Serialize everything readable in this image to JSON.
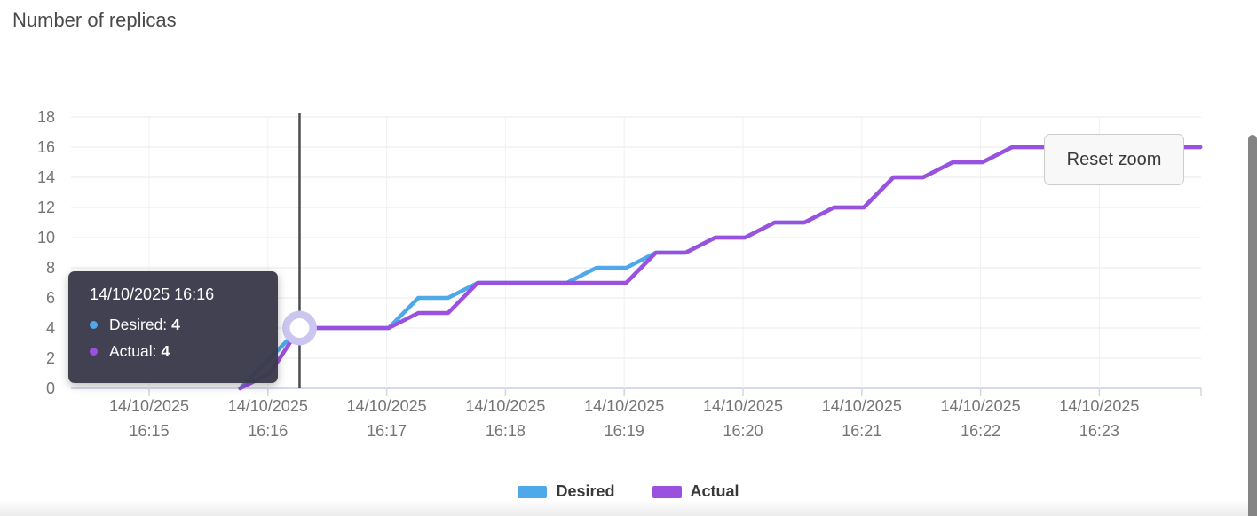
{
  "page": {
    "title": "Number of replicas"
  },
  "chart_data": {
    "type": "line",
    "title": "Number of replicas",
    "grid": true,
    "legend_position": "bottom",
    "ylim": [
      0,
      18
    ],
    "y_ticks": [
      0,
      2,
      4,
      6,
      8,
      10,
      12,
      14,
      16,
      18
    ],
    "x_ticks": [
      {
        "date": "14/10/2025",
        "time": "16:15"
      },
      {
        "date": "14/10/2025",
        "time": "16:16"
      },
      {
        "date": "14/10/2025",
        "time": "16:17"
      },
      {
        "date": "14/10/2025",
        "time": "16:18"
      },
      {
        "date": "14/10/2025",
        "time": "16:19"
      },
      {
        "date": "14/10/2025",
        "time": "16:20"
      },
      {
        "date": "14/10/2025",
        "time": "16:21"
      },
      {
        "date": "14/10/2025",
        "time": "16:22"
      },
      {
        "date": "14/10/2025",
        "time": "16:23"
      }
    ],
    "x_range": [
      "16:14:21",
      "16:23:51"
    ],
    "sample_times": [
      "16:15:46",
      "16:16:01",
      "16:16:16",
      "16:16:31",
      "16:16:46",
      "16:17:01",
      "16:17:16",
      "16:17:31",
      "16:17:46",
      "16:18:01",
      "16:18:16",
      "16:18:31",
      "16:18:46",
      "16:19:01",
      "16:19:16",
      "16:19:31",
      "16:19:46",
      "16:20:01",
      "16:20:16",
      "16:20:31",
      "16:20:46",
      "16:21:01",
      "16:21:16",
      "16:21:31",
      "16:21:46",
      "16:22:01",
      "16:22:16",
      "16:22:31",
      "16:22:46",
      "16:23:01",
      "16:23:16",
      "16:23:31",
      "16:23:46",
      "16:23:51"
    ],
    "series": [
      {
        "name": "Desired",
        "color": "#4FA8EA",
        "values": [
          0,
          2,
          4,
          4,
          4,
          4,
          6,
          6,
          7,
          7,
          7,
          7,
          8,
          8,
          9,
          9,
          10,
          10,
          11,
          11,
          12,
          12,
          14,
          14,
          15,
          15,
          16,
          16,
          16,
          16,
          16,
          16,
          16,
          16
        ]
      },
      {
        "name": "Actual",
        "color": "#9B51E0",
        "values": [
          0,
          1,
          4,
          4,
          4,
          4,
          5,
          5,
          7,
          7,
          7,
          7,
          7,
          7,
          9,
          9,
          10,
          10,
          11,
          11,
          12,
          12,
          14,
          14,
          15,
          15,
          16,
          16,
          16,
          16,
          16,
          16,
          16,
          16
        ]
      }
    ],
    "hover_point": {
      "time": "16:16:16",
      "desired": 4,
      "actual": 4
    }
  },
  "tooltip": {
    "title": "14/10/2025 16:16",
    "rows": [
      {
        "label": "Desired:",
        "value": "4",
        "color": "#4FA8EA"
      },
      {
        "label": "Actual:",
        "value": "4",
        "color": "#9B51E0"
      }
    ]
  },
  "reset_button": {
    "label": "Reset zoom"
  },
  "legend": {
    "items": [
      {
        "label": "Desired",
        "color": "#4FA8EA"
      },
      {
        "label": "Actual",
        "color": "#9B51E0"
      }
    ]
  },
  "colors": {
    "desired_line": "#4FA8EA",
    "actual_line": "#9B51E0",
    "tooltip_background": "#3B3B4B",
    "crosshair": "#4C4C4C",
    "marker_halo": "#CAC6EF",
    "marker_center": "#FFFFFF",
    "h_gridline": "#E8E8E8",
    "v_gridline": "#F1F1F1",
    "axis_line": "#C5CEE8",
    "tick_mark": "#D6D6D6",
    "axis_label": "#757575",
    "title_text": "#4A4A4A",
    "scrollbar_thumb": "#848484"
  }
}
